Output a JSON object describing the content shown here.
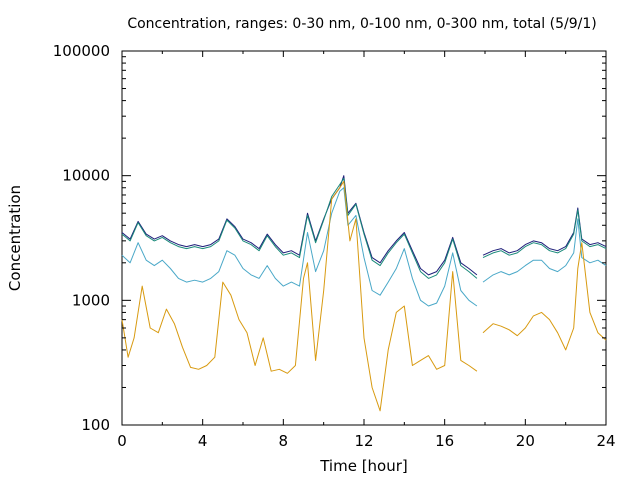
{
  "chart_data": {
    "type": "line",
    "title": "Concentration, ranges: 0-30 nm, 0-100 nm, 0-300 nm, total (5/9/1)",
    "xlabel": "Time [hour]",
    "ylabel": "Concentration",
    "xlim": [
      0,
      24
    ],
    "ylim": [
      100,
      100000
    ],
    "yscale": "log",
    "grid": false,
    "legend": "none",
    "x_ticks": [
      0,
      4,
      8,
      12,
      16,
      20,
      24
    ],
    "x_tick_labels": [
      "0",
      "4",
      "8",
      "12",
      "16",
      "20",
      "24"
    ],
    "y_ticks": [
      100,
      1000,
      10000,
      100000
    ],
    "y_tick_labels": [
      "100",
      "1000",
      "10000",
      "100000"
    ],
    "gap_after_hour": 17.6,
    "gap_resume_hour": 17.9,
    "series": [
      {
        "color": "#1f1f7a",
        "x": [
          0,
          0.4,
          0.8,
          1.2,
          1.6,
          2.0,
          2.4,
          2.8,
          3.2,
          3.6,
          4.0,
          4.4,
          4.8,
          5.2,
          5.6,
          6.0,
          6.4,
          6.8,
          7.2,
          7.6,
          8.0,
          8.4,
          8.8,
          9.2,
          9.6,
          10.0,
          10.4,
          10.8,
          11.0,
          11.2,
          11.6,
          12.0,
          12.4,
          12.8,
          13.2,
          13.6,
          14.0,
          14.4,
          14.8,
          15.2,
          15.6,
          16.0,
          16.4,
          16.8,
          17.2,
          17.6,
          17.9,
          18.4,
          18.8,
          19.2,
          19.6,
          20.0,
          20.4,
          20.8,
          21.2,
          21.6,
          22.0,
          22.4,
          22.6,
          22.8,
          23.2,
          23.6,
          24
        ],
        "y": [
          3500,
          3100,
          4300,
          3400,
          3100,
          3300,
          3000,
          2800,
          2700,
          2800,
          2700,
          2800,
          3100,
          4500,
          3900,
          3100,
          2900,
          2600,
          3400,
          2800,
          2400,
          2500,
          2300,
          5000,
          3000,
          4500,
          6500,
          8000,
          10000,
          5000,
          6000,
          3500,
          2200,
          2000,
          2500,
          3000,
          3500,
          2500,
          1800,
          1600,
          1700,
          2100,
          3200,
          2000,
          1800,
          1600,
          2300,
          2500,
          2600,
          2400,
          2500,
          2800,
          3000,
          2900,
          2600,
          2500,
          2700,
          3500,
          5500,
          3100,
          2800,
          2900,
          2700
        ]
      },
      {
        "color": "#1a8a7a",
        "x": [
          0,
          0.4,
          0.8,
          1.2,
          1.6,
          2.0,
          2.4,
          2.8,
          3.2,
          3.6,
          4.0,
          4.4,
          4.8,
          5.2,
          5.6,
          6.0,
          6.4,
          6.8,
          7.2,
          7.6,
          8.0,
          8.4,
          8.8,
          9.2,
          9.6,
          10.0,
          10.4,
          10.8,
          11.0,
          11.2,
          11.6,
          12.0,
          12.4,
          12.8,
          13.2,
          13.6,
          14.0,
          14.4,
          14.8,
          15.2,
          15.6,
          16.0,
          16.4,
          16.8,
          17.2,
          17.6,
          17.9,
          18.4,
          18.8,
          19.2,
          19.6,
          20.0,
          20.4,
          20.8,
          21.2,
          21.6,
          22.0,
          22.4,
          22.6,
          22.8,
          23.2,
          23.6,
          24
        ],
        "y": [
          3400,
          3000,
          4200,
          3300,
          3000,
          3200,
          2900,
          2700,
          2600,
          2700,
          2600,
          2700,
          3000,
          4400,
          3800,
          3000,
          2800,
          2500,
          3300,
          2700,
          2300,
          2400,
          2200,
          4800,
          2900,
          4400,
          6800,
          8500,
          9500,
          4800,
          5900,
          3400,
          2100,
          1900,
          2400,
          2900,
          3400,
          2400,
          1700,
          1500,
          1600,
          2000,
          3100,
          1900,
          1700,
          1500,
          2200,
          2400,
          2500,
          2300,
          2400,
          2700,
          2900,
          2800,
          2500,
          2400,
          2600,
          3400,
          5300,
          3000,
          2700,
          2800,
          2600
        ]
      },
      {
        "color": "#4aa8c8",
        "x": [
          0,
          0.4,
          0.8,
          1.2,
          1.6,
          2.0,
          2.4,
          2.8,
          3.2,
          3.6,
          4.0,
          4.4,
          4.8,
          5.2,
          5.6,
          6.0,
          6.4,
          6.8,
          7.2,
          7.6,
          8.0,
          8.4,
          8.8,
          9.2,
          9.6,
          10.0,
          10.4,
          10.8,
          11.0,
          11.2,
          11.6,
          12.0,
          12.4,
          12.8,
          13.2,
          13.6,
          14.0,
          14.4,
          14.8,
          15.2,
          15.6,
          16.0,
          16.4,
          16.8,
          17.2,
          17.6,
          17.9,
          18.4,
          18.8,
          19.2,
          19.6,
          20.0,
          20.4,
          20.8,
          21.2,
          21.6,
          22.0,
          22.4,
          22.6,
          22.8,
          23.2,
          23.6,
          24
        ],
        "y": [
          2300,
          2000,
          2900,
          2100,
          1900,
          2100,
          1800,
          1500,
          1400,
          1450,
          1400,
          1500,
          1700,
          2500,
          2300,
          1800,
          1600,
          1500,
          1900,
          1500,
          1300,
          1400,
          1300,
          3500,
          1700,
          2500,
          5000,
          7500,
          8000,
          4000,
          4800,
          2200,
          1200,
          1100,
          1400,
          1800,
          2600,
          1500,
          1000,
          900,
          950,
          1300,
          2400,
          1200,
          1000,
          900,
          1400,
          1600,
          1700,
          1600,
          1700,
          1900,
          2100,
          2100,
          1800,
          1700,
          1900,
          2400,
          4500,
          2200,
          2000,
          2100,
          1900
        ]
      },
      {
        "color": "#d89a10",
        "x": [
          0,
          0.3,
          0.6,
          1.0,
          1.4,
          1.8,
          2.2,
          2.6,
          3.0,
          3.4,
          3.8,
          4.2,
          4.6,
          5.0,
          5.4,
          5.8,
          6.2,
          6.6,
          7.0,
          7.4,
          7.8,
          8.2,
          8.6,
          9.0,
          9.2,
          9.6,
          10.0,
          10.4,
          10.8,
          11.0,
          11.3,
          11.6,
          12.0,
          12.4,
          12.8,
          13.2,
          13.6,
          14.0,
          14.4,
          14.8,
          15.2,
          15.6,
          16.0,
          16.4,
          16.8,
          17.2,
          17.6,
          17.9,
          18.4,
          18.8,
          19.2,
          19.6,
          20.0,
          20.4,
          20.8,
          21.2,
          21.6,
          22.0,
          22.4,
          22.6,
          22.8,
          23.2,
          23.6,
          24
        ],
        "y": [
          700,
          350,
          500,
          1300,
          600,
          550,
          850,
          650,
          420,
          290,
          280,
          300,
          350,
          1400,
          1100,
          700,
          550,
          300,
          500,
          270,
          280,
          260,
          300,
          1500,
          2000,
          330,
          1200,
          6500,
          8000,
          9000,
          3000,
          4500,
          500,
          200,
          130,
          400,
          800,
          900,
          300,
          330,
          360,
          280,
          300,
          1700,
          330,
          300,
          270,
          550,
          650,
          620,
          580,
          520,
          600,
          750,
          800,
          700,
          550,
          400,
          600,
          1800,
          2900,
          800,
          550,
          480
        ]
      }
    ]
  }
}
